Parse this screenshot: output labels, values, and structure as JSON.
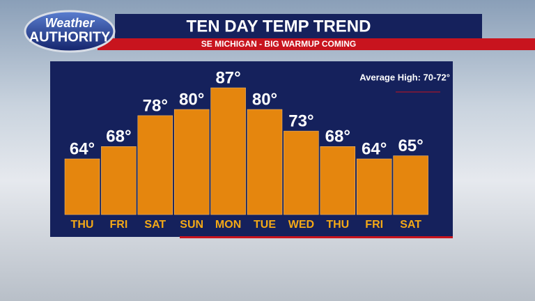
{
  "logo": {
    "line1": "Weather",
    "line2": "AUTHORITY"
  },
  "chart_data": {
    "type": "bar",
    "title": "TEN DAY TEMP TREND",
    "subtitle": "SE MICHIGAN - BIG WARMUP COMING",
    "annotation": "Average High: 70-72°",
    "categories": [
      "THU",
      "FRI",
      "SAT",
      "SUN",
      "MON",
      "TUE",
      "WED",
      "THU",
      "FRI",
      "SAT"
    ],
    "values": [
      64,
      68,
      78,
      80,
      87,
      80,
      73,
      68,
      64,
      65
    ],
    "value_labels": [
      "64°",
      "68°",
      "78°",
      "80°",
      "87°",
      "80°",
      "73°",
      "68°",
      "64°",
      "65°"
    ],
    "color": "#e5860e"
  }
}
